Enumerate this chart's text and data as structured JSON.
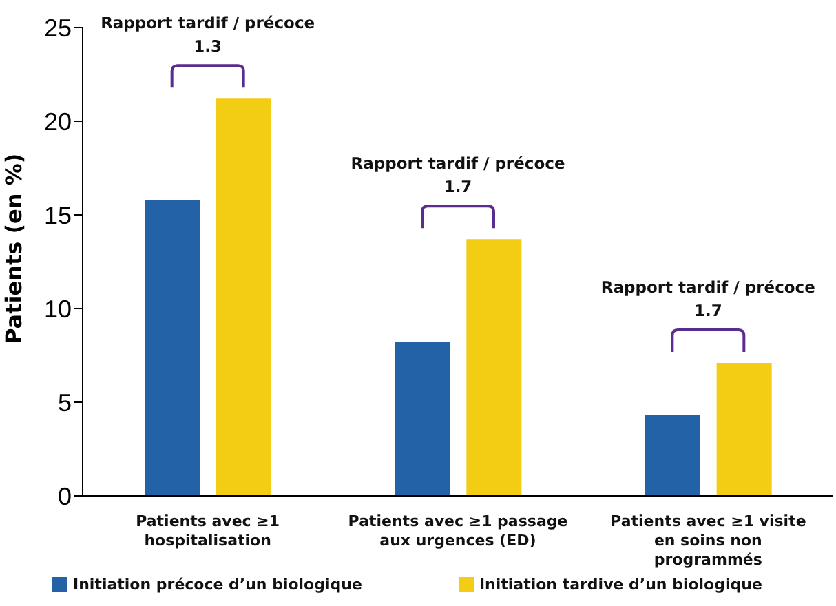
{
  "chart_data": {
    "type": "bar",
    "ylabel": "Patients (en %)",
    "categories": [
      "Patients avec ≥1\nhospitalisation",
      "Patients avec ≥1 passage\naux urgences (ED)",
      "Patients avec ≥1 visite\nen soins non\nprogrammés"
    ],
    "series": [
      {
        "name": "Initiation précoce d’un biologique",
        "color": "#2462a8",
        "values": [
          15.8,
          8.2,
          4.3
        ]
      },
      {
        "name": "Initiation tardive d’un biologique",
        "color": "#f2cd14",
        "values": [
          21.2,
          13.7,
          7.1
        ]
      }
    ],
    "ylim": [
      0,
      25
    ],
    "yticks": [
      0,
      5,
      10,
      15,
      20,
      25
    ],
    "grid": false,
    "legend": "bottom",
    "annotations": [
      "Rapport tardif / précoce\n1.3",
      "Rapport tardif / précoce\n1.7",
      "Rapport tardif / précoce\n1.7"
    ]
  }
}
